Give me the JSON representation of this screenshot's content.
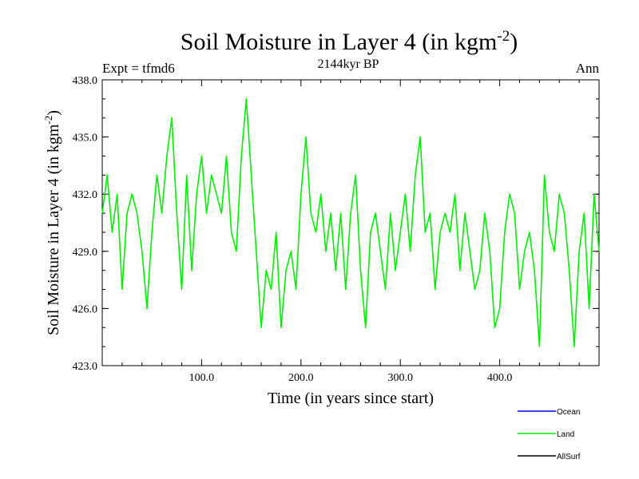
{
  "chart_data": {
    "type": "line",
    "title": "Soil Moisture in Layer 4 (in kgm",
    "title_sup": "-2",
    "title_end": ")",
    "subtitle": "2144kyr BP",
    "left_label": "Expt = tfmd6",
    "right_label": "Ann",
    "xlabel": "Time (in years since start)",
    "ylabel": "Soil Moisture in Layer 4 (in kgm",
    "ylabel_sup": "-2",
    "ylabel_end": ")",
    "xlim": [
      0,
      500
    ],
    "ylim": [
      423.0,
      438.0
    ],
    "xticks": [
      100,
      200,
      300,
      400
    ],
    "xtick_labels": [
      "100.0",
      "200.0",
      "300.0",
      "400.0"
    ],
    "yticks": [
      423,
      426,
      429,
      432,
      435,
      438
    ],
    "ytick_labels": [
      "423.0",
      "426.0",
      "429.0",
      "432.0",
      "435.0",
      "438.0"
    ],
    "legend": [
      {
        "name": "Ocean",
        "color": "#0000ff"
      },
      {
        "name": "Land",
        "color": "#00ee00"
      },
      {
        "name": "AllSurf",
        "color": "#000000"
      }
    ],
    "series": [
      {
        "name": "Land",
        "color": "#00ee00",
        "x": [
          0,
          5,
          10,
          15,
          20,
          25,
          30,
          35,
          40,
          45,
          50,
          55,
          60,
          65,
          70,
          75,
          80,
          85,
          90,
          95,
          100,
          105,
          110,
          115,
          120,
          125,
          130,
          135,
          140,
          145,
          150,
          155,
          160,
          165,
          170,
          175,
          180,
          185,
          190,
          195,
          200,
          205,
          210,
          215,
          220,
          225,
          230,
          235,
          240,
          245,
          250,
          255,
          260,
          265,
          270,
          275,
          280,
          285,
          290,
          295,
          300,
          305,
          310,
          315,
          320,
          325,
          330,
          335,
          340,
          345,
          350,
          355,
          360,
          365,
          370,
          375,
          380,
          385,
          390,
          395,
          400,
          405,
          410,
          415,
          420,
          425,
          430,
          435,
          440,
          445,
          450,
          455,
          460,
          465,
          470,
          475,
          480,
          485,
          490,
          495,
          500
        ],
        "values": [
          431,
          433,
          430,
          432,
          427,
          431,
          432,
          431,
          429,
          426,
          430,
          433,
          431,
          434,
          436,
          431,
          427,
          433,
          428,
          432,
          434,
          431,
          433,
          432,
          431,
          434,
          430,
          429,
          434,
          437,
          433,
          429,
          425,
          428,
          427,
          430,
          425,
          428,
          429,
          427,
          432,
          435,
          431,
          430,
          432,
          429,
          431,
          428,
          431,
          427,
          431,
          433,
          428,
          425,
          430,
          431,
          429,
          427,
          431,
          428,
          430,
          432,
          429,
          433,
          435,
          430,
          431,
          427,
          430,
          431,
          430,
          432,
          428,
          431,
          429,
          427,
          428,
          431,
          429,
          425,
          426,
          430,
          432,
          431,
          427,
          429,
          430,
          428,
          424,
          433,
          430,
          429,
          432,
          431,
          428,
          424,
          429,
          431,
          426,
          432,
          429
        ]
      }
    ]
  }
}
